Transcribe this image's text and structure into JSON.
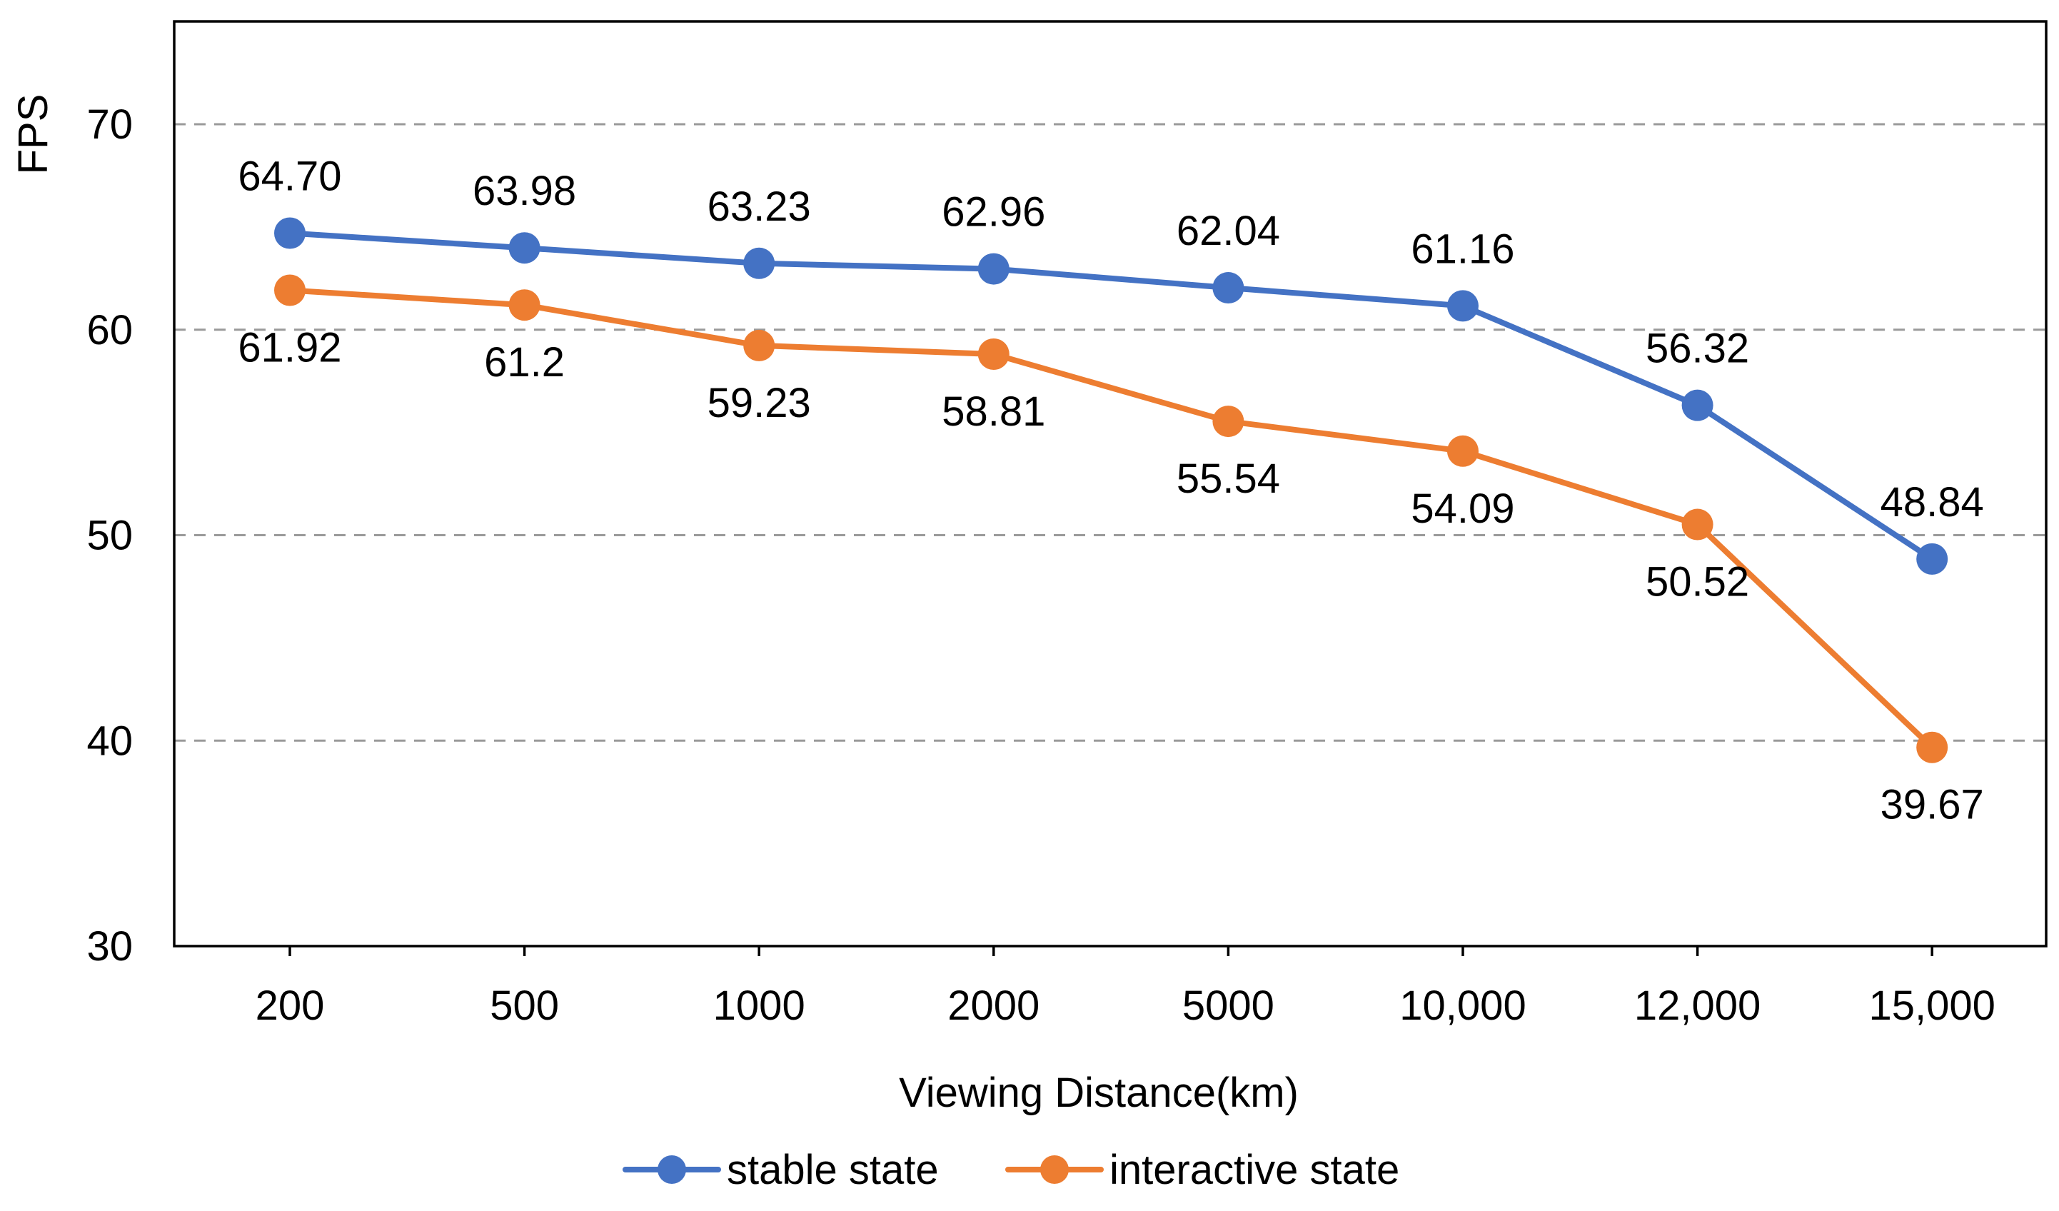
{
  "chart_data": {
    "type": "line",
    "title": "",
    "xlabel": "Viewing Distance(km)",
    "ylabel": "FPS",
    "categories": [
      "200",
      "500",
      "1000",
      "2000",
      "5000",
      "10,000",
      "12,000",
      "15,000"
    ],
    "ylim": [
      30,
      75
    ],
    "yticks": [
      30,
      40,
      50,
      60,
      70
    ],
    "grid": true,
    "legend_position": "bottom",
    "series": [
      {
        "name": "stable state",
        "color": "#4472c4",
        "values": [
          64.7,
          63.98,
          63.23,
          62.96,
          62.04,
          61.16,
          56.32,
          48.84
        ],
        "labels": [
          "64.70",
          "63.98",
          "63.23",
          "62.96",
          "62.04",
          "61.16",
          "56.32",
          "48.84"
        ],
        "label_position": "above"
      },
      {
        "name": "interactive state",
        "color": "#ed7d31",
        "values": [
          61.92,
          61.2,
          59.23,
          58.81,
          55.54,
          54.09,
          50.52,
          39.67
        ],
        "labels": [
          "61.92",
          "61.2",
          "59.23",
          "58.81",
          "55.54",
          "54.09",
          "50.52",
          "39.67"
        ],
        "label_position": "below"
      }
    ]
  }
}
